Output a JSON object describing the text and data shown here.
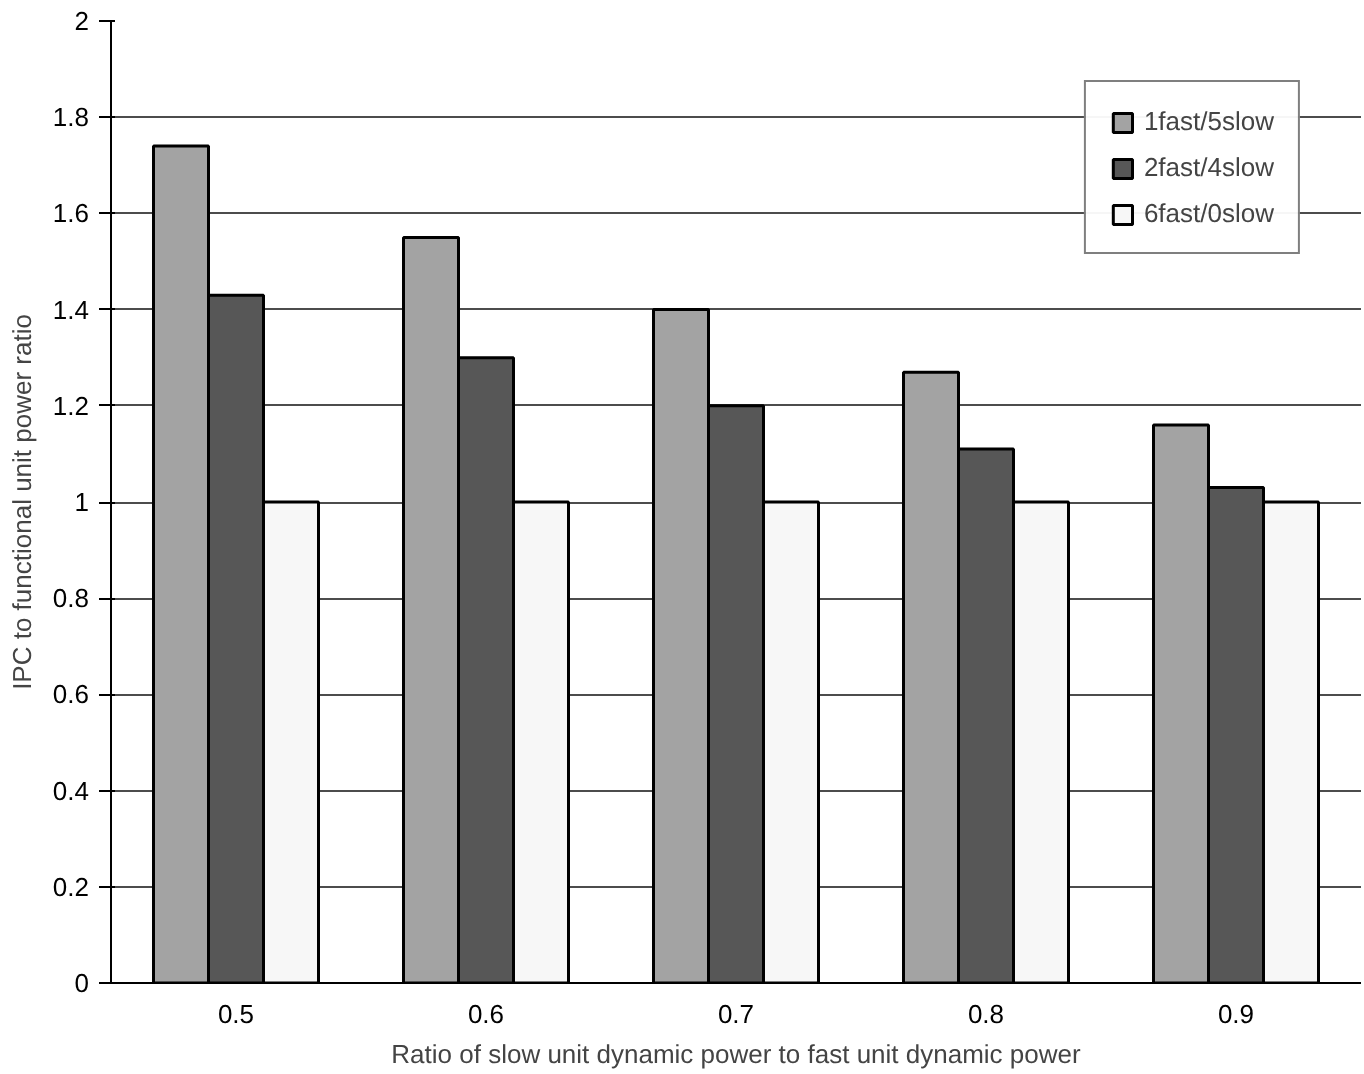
{
  "chart_data": {
    "type": "bar",
    "xlabel": "Ratio of slow unit dynamic power to fast unit dynamic power",
    "ylabel": "IPC to functional unit power ratio",
    "categories": [
      "0.5",
      "0.6",
      "0.7",
      "0.8",
      "0.9"
    ],
    "series": [
      {
        "name": "1fast/5slow",
        "color": "#a3a3a3",
        "values": [
          1.74,
          1.55,
          1.4,
          1.27,
          1.16
        ]
      },
      {
        "name": "2fast/4slow",
        "color": "#575757",
        "values": [
          1.43,
          1.3,
          1.2,
          1.11,
          1.03
        ]
      },
      {
        "name": "6fast/0slow",
        "color": "#f7f7f7",
        "values": [
          1,
          1,
          1,
          1,
          1
        ]
      }
    ],
    "ylim": [
      0,
      2
    ],
    "yticks": [
      0,
      {
        "value": 0.2,
        "label": "0.2"
      },
      {
        "value": 0.4,
        "label": "0.4"
      },
      {
        "value": 0.6,
        "label": "0.6"
      },
      {
        "value": 0.8,
        "label": "0.8"
      },
      1,
      {
        "value": 1.2,
        "label": "1.2"
      },
      {
        "value": 1.4,
        "label": "1.4"
      },
      {
        "value": 1.6,
        "label": "1.6"
      },
      {
        "value": 1.8,
        "label": "1.8"
      },
      2
    ],
    "grid": "y",
    "legend": "top right"
  }
}
